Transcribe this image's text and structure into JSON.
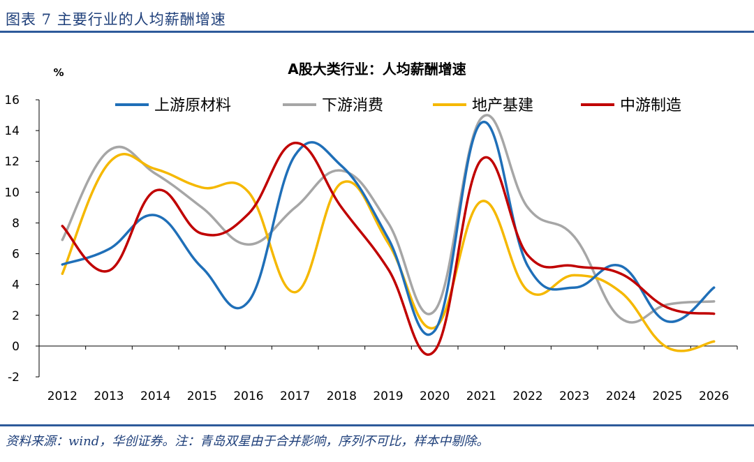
{
  "figure": {
    "title": "图表 7 主要行业的人均薪酬增速",
    "source": "资料来源：wind，华创证券。注：青岛双星由于合并影响，序列不可比，样本中剔除。"
  },
  "chart_data": {
    "type": "line",
    "title": "A股大类行业：人均薪酬增速",
    "ylabel": "%",
    "xlabel": "",
    "ylim": [
      -2,
      16
    ],
    "yticks": [
      -2,
      0,
      2,
      4,
      6,
      8,
      10,
      12,
      14,
      16
    ],
    "ytick_labels": [
      "-2",
      "0",
      "2",
      "4",
      "6",
      "8",
      "10",
      "12",
      "14",
      "16"
    ],
    "categories": [
      "2012",
      "2013",
      "2014",
      "2015",
      "2016",
      "2017",
      "2018",
      "2019",
      "2020",
      "2021",
      "2022",
      "2023",
      "2024",
      "2025",
      "2026"
    ],
    "grid": false,
    "legend_position": "top",
    "series": [
      {
        "name": "上游原材料",
        "color": "#1f6fb8",
        "values": [
          5.3,
          6.3,
          8.5,
          5.1,
          2.9,
          12.4,
          11.7,
          7.0,
          1.0,
          14.5,
          5.2,
          3.8,
          5.2,
          1.6,
          3.8
        ]
      },
      {
        "name": "下游消费",
        "color": "#a6a6a6",
        "values": [
          6.9,
          12.7,
          11.2,
          9.0,
          6.6,
          9.0,
          11.4,
          8.0,
          2.3,
          14.8,
          9.0,
          7.1,
          1.8,
          2.7,
          2.9
        ]
      },
      {
        "name": "地产基建",
        "color": "#f5b800",
        "values": [
          4.7,
          11.9,
          11.5,
          10.3,
          10.0,
          3.5,
          10.6,
          6.7,
          1.2,
          9.4,
          3.6,
          4.6,
          3.5,
          -0.1,
          0.3
        ]
      },
      {
        "name": "中游制造",
        "color": "#c00000",
        "values": [
          7.8,
          4.9,
          10.1,
          7.3,
          8.6,
          13.2,
          9.0,
          5.0,
          -0.3,
          12.1,
          5.9,
          5.2,
          4.7,
          2.5,
          2.1
        ]
      }
    ]
  }
}
